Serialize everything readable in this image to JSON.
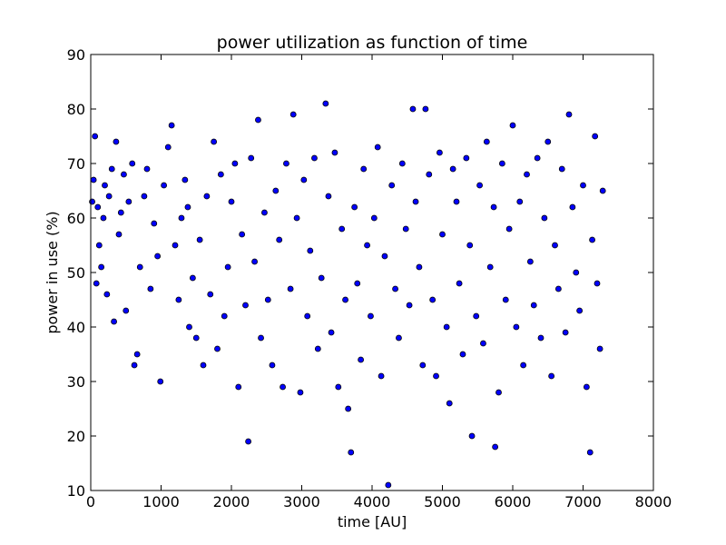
{
  "chart_data": {
    "type": "scatter",
    "title": "power utilization as function of time",
    "xlabel": "time [AU]",
    "ylabel": "power in use (%)",
    "xlim": [
      0,
      8000
    ],
    "ylim": [
      10,
      90
    ],
    "xticks": [
      0,
      1000,
      2000,
      3000,
      4000,
      5000,
      6000,
      7000,
      8000
    ],
    "yticks": [
      10,
      20,
      30,
      40,
      50,
      60,
      70,
      80,
      90
    ],
    "grid": false,
    "marker_fill": "#0000ff",
    "marker_edge": "#000000",
    "series": [
      {
        "values": [
          [
            20,
            63
          ],
          [
            40,
            67
          ],
          [
            60,
            75
          ],
          [
            80,
            48
          ],
          [
            100,
            62
          ],
          [
            120,
            55
          ],
          [
            150,
            51
          ],
          [
            180,
            60
          ],
          [
            200,
            66
          ],
          [
            230,
            46
          ],
          [
            260,
            64
          ],
          [
            300,
            69
          ],
          [
            330,
            41
          ],
          [
            360,
            74
          ],
          [
            400,
            57
          ],
          [
            430,
            61
          ],
          [
            470,
            68
          ],
          [
            500,
            43
          ],
          [
            540,
            63
          ],
          [
            590,
            70
          ],
          [
            620,
            33
          ],
          [
            660,
            35
          ],
          [
            700,
            51
          ],
          [
            760,
            64
          ],
          [
            800,
            69
          ],
          [
            850,
            47
          ],
          [
            900,
            59
          ],
          [
            950,
            53
          ],
          [
            990,
            30
          ],
          [
            1040,
            66
          ],
          [
            1100,
            73
          ],
          [
            1150,
            77
          ],
          [
            1200,
            55
          ],
          [
            1250,
            45
          ],
          [
            1290,
            60
          ],
          [
            1340,
            67
          ],
          [
            1380,
            62
          ],
          [
            1400,
            40
          ],
          [
            1450,
            49
          ],
          [
            1500,
            38
          ],
          [
            1550,
            56
          ],
          [
            1600,
            33
          ],
          [
            1650,
            64
          ],
          [
            1700,
            46
          ],
          [
            1750,
            74
          ],
          [
            1800,
            36
          ],
          [
            1850,
            68
          ],
          [
            1900,
            42
          ],
          [
            1950,
            51
          ],
          [
            2000,
            63
          ],
          [
            2050,
            70
          ],
          [
            2100,
            29
          ],
          [
            2150,
            57
          ],
          [
            2200,
            44
          ],
          [
            2240,
            19
          ],
          [
            2280,
            71
          ],
          [
            2330,
            52
          ],
          [
            2380,
            78
          ],
          [
            2420,
            38
          ],
          [
            2470,
            61
          ],
          [
            2520,
            45
          ],
          [
            2580,
            33
          ],
          [
            2630,
            65
          ],
          [
            2680,
            56
          ],
          [
            2730,
            29
          ],
          [
            2780,
            70
          ],
          [
            2840,
            47
          ],
          [
            2880,
            79
          ],
          [
            2930,
            60
          ],
          [
            2980,
            28
          ],
          [
            3030,
            67
          ],
          [
            3080,
            42
          ],
          [
            3120,
            54
          ],
          [
            3180,
            71
          ],
          [
            3230,
            36
          ],
          [
            3280,
            49
          ],
          [
            3340,
            81
          ],
          [
            3380,
            64
          ],
          [
            3420,
            39
          ],
          [
            3470,
            72
          ],
          [
            3520,
            29
          ],
          [
            3570,
            58
          ],
          [
            3620,
            45
          ],
          [
            3660,
            25
          ],
          [
            3700,
            17
          ],
          [
            3750,
            62
          ],
          [
            3790,
            48
          ],
          [
            3840,
            34
          ],
          [
            3880,
            69
          ],
          [
            3930,
            55
          ],
          [
            3980,
            42
          ],
          [
            4030,
            60
          ],
          [
            4080,
            73
          ],
          [
            4130,
            31
          ],
          [
            4180,
            53
          ],
          [
            4230,
            11
          ],
          [
            4280,
            66
          ],
          [
            4330,
            47
          ],
          [
            4380,
            38
          ],
          [
            4430,
            70
          ],
          [
            4480,
            58
          ],
          [
            4530,
            44
          ],
          [
            4580,
            80
          ],
          [
            4620,
            63
          ],
          [
            4670,
            51
          ],
          [
            4720,
            33
          ],
          [
            4760,
            80
          ],
          [
            4810,
            68
          ],
          [
            4860,
            45
          ],
          [
            4910,
            31
          ],
          [
            4960,
            72
          ],
          [
            5000,
            57
          ],
          [
            5060,
            40
          ],
          [
            5100,
            26
          ],
          [
            5150,
            69
          ],
          [
            5200,
            63
          ],
          [
            5240,
            48
          ],
          [
            5290,
            35
          ],
          [
            5340,
            71
          ],
          [
            5390,
            55
          ],
          [
            5420,
            20
          ],
          [
            5480,
            42
          ],
          [
            5530,
            66
          ],
          [
            5580,
            37
          ],
          [
            5630,
            74
          ],
          [
            5680,
            51
          ],
          [
            5730,
            62
          ],
          [
            5750,
            18
          ],
          [
            5800,
            28
          ],
          [
            5850,
            70
          ],
          [
            5900,
            45
          ],
          [
            5950,
            58
          ],
          [
            6000,
            77
          ],
          [
            6050,
            40
          ],
          [
            6100,
            63
          ],
          [
            6150,
            33
          ],
          [
            6200,
            68
          ],
          [
            6250,
            52
          ],
          [
            6300,
            44
          ],
          [
            6350,
            71
          ],
          [
            6400,
            38
          ],
          [
            6450,
            60
          ],
          [
            6500,
            74
          ],
          [
            6550,
            31
          ],
          [
            6600,
            55
          ],
          [
            6650,
            47
          ],
          [
            6700,
            69
          ],
          [
            6750,
            39
          ],
          [
            6800,
            79
          ],
          [
            6850,
            62
          ],
          [
            6900,
            50
          ],
          [
            6950,
            43
          ],
          [
            7000,
            66
          ],
          [
            7050,
            29
          ],
          [
            7100,
            17
          ],
          [
            7130,
            56
          ],
          [
            7170,
            75
          ],
          [
            7200,
            48
          ],
          [
            7240,
            36
          ],
          [
            7280,
            65
          ]
        ]
      }
    ]
  }
}
